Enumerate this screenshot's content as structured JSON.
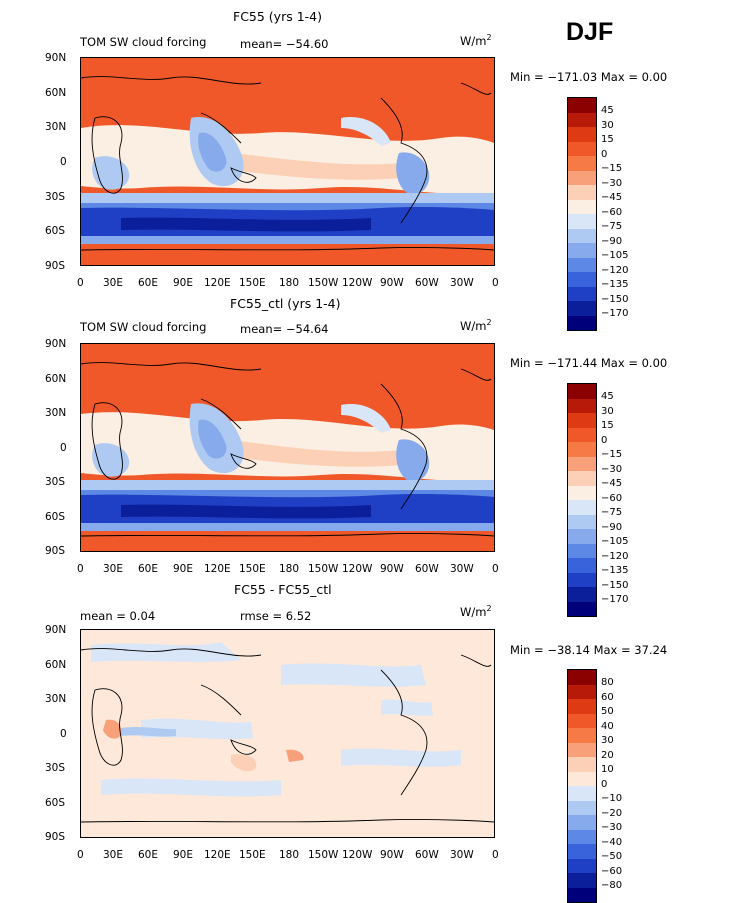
{
  "season": "DJF",
  "axes": {
    "lat_labels": [
      "90N",
      "60N",
      "30N",
      "0",
      "30S",
      "60S",
      "90S"
    ],
    "lon_labels": [
      "0",
      "30E",
      "60E",
      "90E",
      "120E",
      "150E",
      "180",
      "150W",
      "120W",
      "90W",
      "60W",
      "30W",
      "0"
    ]
  },
  "panels": [
    {
      "title": "FC55 (yrs 1-4)",
      "left_label": "TOM SW cloud forcing",
      "center_label": "mean= −54.60",
      "units_base": "W/m",
      "units_sup": "2",
      "min_max": "Min = −171.03 Max =    0.00",
      "levels": [
        "45",
        "30",
        "15",
        "0",
        "−15",
        "−30",
        "−45",
        "−60",
        "−75",
        "−90",
        "−105",
        "−120",
        "−135",
        "−150",
        "−170"
      ],
      "colors": [
        "#8b0000",
        "#b81a0a",
        "#de3a14",
        "#f0582a",
        "#f57a45",
        "#f8a07a",
        "#fcd0b6",
        "#fbeee2",
        "#d8e6f8",
        "#aecaf2",
        "#86aaec",
        "#5d88e5",
        "#3863da",
        "#1f40c4",
        "#0c1f9a",
        "#00007a"
      ]
    },
    {
      "title": "FC55_ctl (yrs 1-4)",
      "left_label": "TOM SW cloud forcing",
      "center_label": "mean= −54.64",
      "units_base": "W/m",
      "units_sup": "2",
      "min_max": "Min = −171.44 Max =    0.00",
      "levels": [
        "45",
        "30",
        "15",
        "0",
        "−15",
        "−30",
        "−45",
        "−60",
        "−75",
        "−90",
        "−105",
        "−120",
        "−135",
        "−150",
        "−170"
      ],
      "colors": [
        "#8b0000",
        "#b81a0a",
        "#de3a14",
        "#f0582a",
        "#f57a45",
        "#f8a07a",
        "#fcd0b6",
        "#fbeee2",
        "#d8e6f8",
        "#aecaf2",
        "#86aaec",
        "#5d88e5",
        "#3863da",
        "#1f40c4",
        "#0c1f9a",
        "#00007a"
      ]
    },
    {
      "title": "FC55 - FC55_ctl",
      "left_label": "mean =    0.04",
      "center_label": "rmse =    6.52",
      "units_base": "W/m",
      "units_sup": "2",
      "min_max": "Min = −38.14 Max =   37.24",
      "levels": [
        "80",
        "60",
        "50",
        "40",
        "30",
        "20",
        "10",
        "0",
        "−10",
        "−20",
        "−30",
        "−40",
        "−50",
        "−60",
        "−80"
      ],
      "colors": [
        "#8b0000",
        "#b81a0a",
        "#de3a14",
        "#f0582a",
        "#f57a45",
        "#f8a07a",
        "#fcd0b6",
        "#fde8da",
        "#d8e6f8",
        "#aecaf2",
        "#86aaec",
        "#5d88e5",
        "#3863da",
        "#1f40c4",
        "#0c1f9a",
        "#00007a"
      ]
    }
  ]
}
